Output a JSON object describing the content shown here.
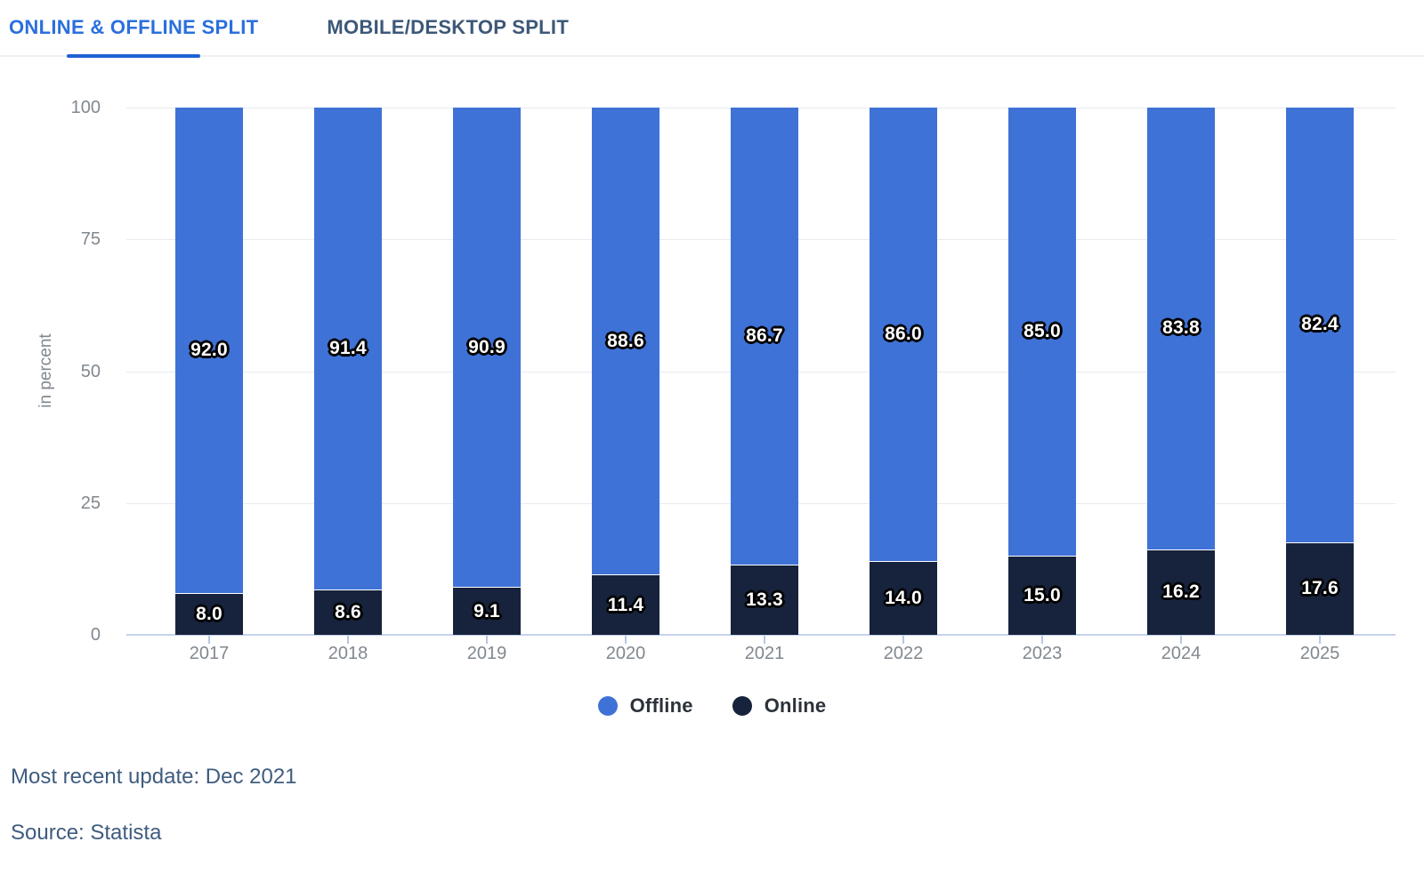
{
  "tabs": [
    {
      "label": "ONLINE & OFFLINE SPLIT",
      "active": true
    },
    {
      "label": "MOBILE/DESKTOP SPLIT",
      "active": false
    }
  ],
  "chart_data": {
    "type": "bar",
    "stacked": true,
    "ylabel": "in percent",
    "xlabel": "",
    "ylim": [
      0,
      100
    ],
    "yticks": [
      0,
      25,
      50,
      75,
      100
    ],
    "grid": true,
    "legend_position": "bottom",
    "categories": [
      "2017",
      "2018",
      "2019",
      "2020",
      "2021",
      "2022",
      "2023",
      "2024",
      "2025"
    ],
    "series": [
      {
        "name": "Offline",
        "color": "#3f72d6",
        "values": [
          92.0,
          91.4,
          90.9,
          88.6,
          86.7,
          86.0,
          85.0,
          83.8,
          82.4
        ]
      },
      {
        "name": "Online",
        "color": "#17233c",
        "values": [
          8.0,
          8.6,
          9.1,
          11.4,
          13.3,
          14.0,
          15.0,
          16.2,
          17.6
        ]
      }
    ],
    "value_label_decimals": 1
  },
  "footer": {
    "updated": "Most recent update: Dec 2021",
    "source": "Source: Statista"
  },
  "colors": {
    "active_tab": "#2b6fdd",
    "inactive_tab": "#3d5878",
    "tab_underline": "#1d62d6",
    "axis_text": "#81888f",
    "gridline": "#e8eaee",
    "axis_line": "#c6d2ee",
    "tick": "#b8c6e6",
    "legend_text": "#2c323a",
    "footer_text": "#3f5c7f"
  }
}
